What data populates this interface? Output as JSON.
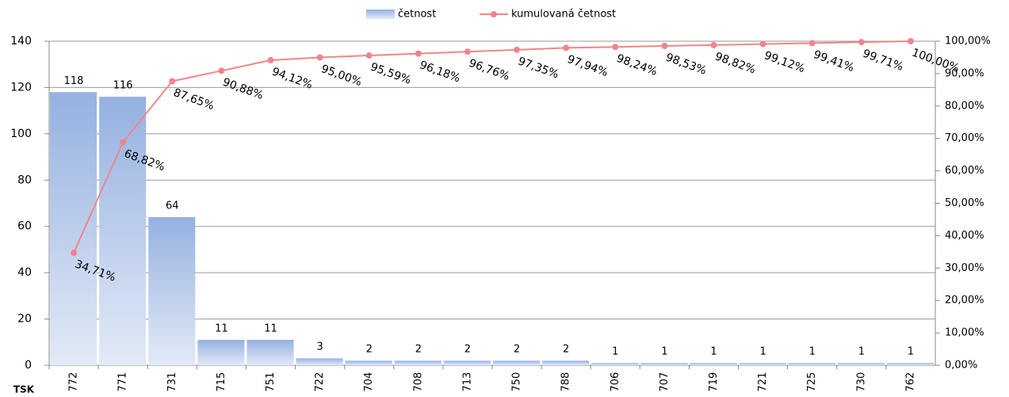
{
  "chart_data": {
    "type": "bar",
    "x_label": "TSK",
    "categories": [
      "772",
      "771",
      "731",
      "715",
      "751",
      "722",
      "704",
      "708",
      "713",
      "750",
      "788",
      "706",
      "707",
      "719",
      "721",
      "725",
      "730",
      "762"
    ],
    "series": [
      {
        "name": "četnost",
        "type": "bar",
        "color": "#95b1e1",
        "values": [
          118,
          116,
          64,
          11,
          11,
          3,
          2,
          2,
          2,
          2,
          2,
          1,
          1,
          1,
          1,
          1,
          1,
          1
        ]
      },
      {
        "name": "kumulovaná četnost",
        "type": "line",
        "color": "#f0858a",
        "axis": "y2",
        "values": [
          34.71,
          68.82,
          87.65,
          90.88,
          94.12,
          95.0,
          95.59,
          96.18,
          96.76,
          97.35,
          97.94,
          98.24,
          98.53,
          98.82,
          99.12,
          99.41,
          99.71,
          100.0
        ],
        "value_labels": [
          "34,71%",
          "68,82%",
          "87,65%",
          "90,88%",
          "94,12%",
          "95,00%",
          "95,59%",
          "96,18%",
          "96,76%",
          "97,35%",
          "97,94%",
          "98,24%",
          "98,53%",
          "98,82%",
          "99,12%",
          "99,41%",
          "99,71%",
          "100,00%"
        ]
      }
    ],
    "ylim": [
      0,
      140
    ],
    "yticks": [
      0,
      20,
      40,
      60,
      80,
      100,
      120,
      140
    ],
    "y2lim": [
      0,
      100
    ],
    "y2ticks": [
      {
        "value": 0,
        "label": "0,00%"
      },
      {
        "value": 10,
        "label": "10,00%"
      },
      {
        "value": 20,
        "label": "20,00%"
      },
      {
        "value": 30,
        "label": "30,00%"
      },
      {
        "value": 40,
        "label": "40,00%"
      },
      {
        "value": 50,
        "label": "50,00%"
      },
      {
        "value": 60,
        "label": "60,00%"
      },
      {
        "value": 70,
        "label": "70,00%"
      },
      {
        "value": 80,
        "label": "80,00%"
      },
      {
        "value": 90,
        "label": "90,00%"
      },
      {
        "value": 100,
        "label": "100,00%"
      }
    ],
    "grid": true,
    "legend": "top"
  }
}
